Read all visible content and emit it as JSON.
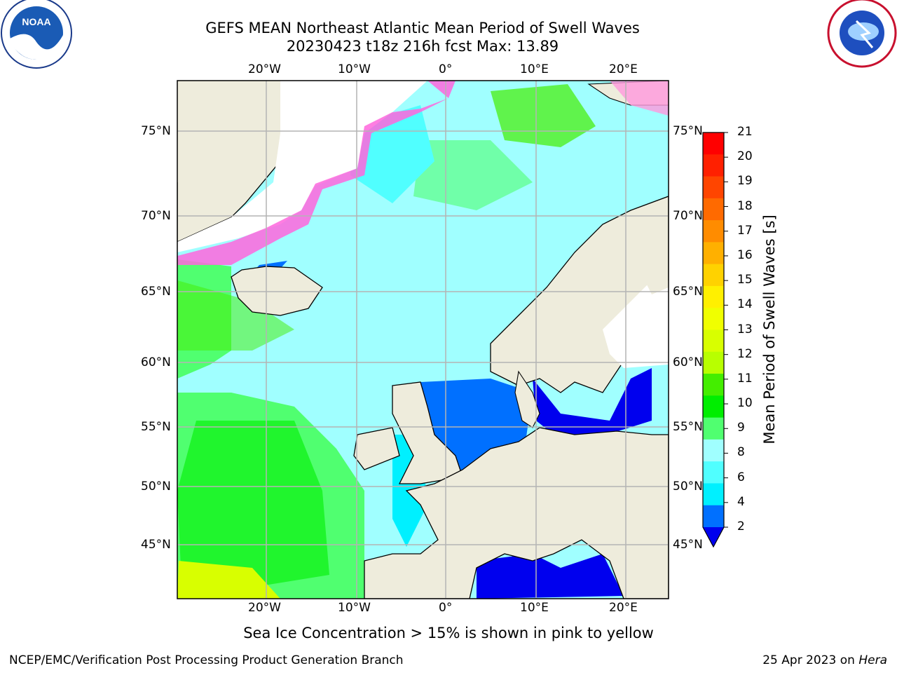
{
  "title": {
    "line1": "GEFS MEAN Northeast Atlantic Mean Period of Swell Waves",
    "line2": "20230423 t18z 216h fcst   Max: 13.89"
  },
  "axes": {
    "lon_labels": [
      "20°W",
      "10°W",
      "0°",
      "10°E",
      "20°E"
    ],
    "lat_labels": [
      "75°N",
      "70°N",
      "65°N",
      "60°N",
      "55°N",
      "50°N",
      "45°N"
    ]
  },
  "colorbar": {
    "label": "Mean Period of Swell Waves [s]",
    "ticks": [
      "21",
      "20",
      "19",
      "18",
      "17",
      "16",
      "15",
      "14",
      "13",
      "12",
      "11",
      "10",
      "9",
      "8",
      "6",
      "4",
      "2"
    ],
    "colors": [
      "#ff0000",
      "#ff2000",
      "#ff4500",
      "#ff6a00",
      "#ff8c00",
      "#ffb000",
      "#ffd200",
      "#fff000",
      "#f0ff00",
      "#d8ff00",
      "#b8ff00",
      "#44ee00",
      "#00ee00",
      "#50ff70",
      "#a0ffff",
      "#50ffff",
      "#00f0ff",
      "#0070ff",
      "#0000ee"
    ]
  },
  "logos": {
    "left": "NOAA",
    "right": "NATIONAL WEATHER SERVICE"
  },
  "note": "Sea Ice Concentration > 15% is shown in pink to yellow",
  "credit": "NCEP/EMC/Verification Post Processing Product Generation Branch",
  "date_prefix": "25 Apr 2023 on ",
  "date_host": "Hera"
}
